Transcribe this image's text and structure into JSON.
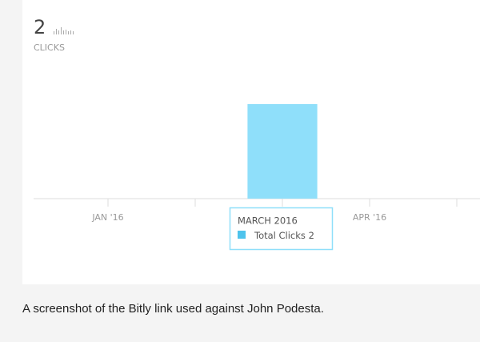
{
  "chart_data": {
    "type": "bar",
    "total": 2,
    "total_label": "CLICKS",
    "categories": [
      "JAN '16",
      null,
      null,
      "APR '16",
      null
    ],
    "series": [
      {
        "name": "Total Clicks",
        "color": "#8fdffa",
        "values": [
          0,
          0,
          2,
          0,
          0
        ]
      }
    ],
    "ylim": [
      0,
      2
    ],
    "grid": false,
    "tooltip_title": "MARCH 2016"
  },
  "caption": "A screenshot of the Bitly link used against John Podesta."
}
